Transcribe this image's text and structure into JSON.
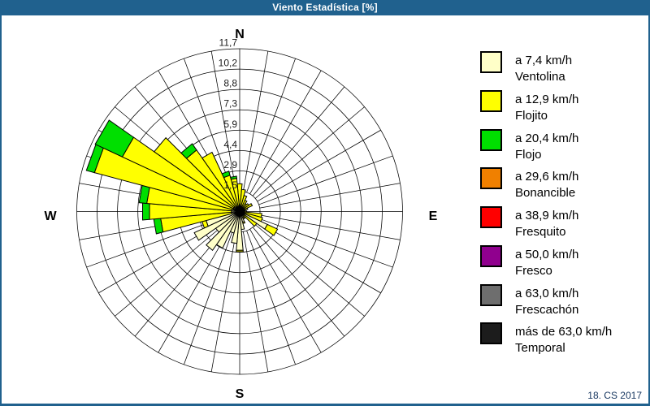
{
  "header": {
    "title": "Viento Estadística [%]"
  },
  "footer": {
    "text": "18. CS 2017"
  },
  "legend": {
    "entries": [
      {
        "color": "#FFFFC8",
        "speed": "a 7,4 km/h",
        "name": "Ventolina"
      },
      {
        "color": "#FFFF00",
        "speed": "a 12,9 km/h",
        "name": "Flojito"
      },
      {
        "color": "#00DF00",
        "speed": "a 20,4 km/h",
        "name": "Flojo"
      },
      {
        "color": "#F08000",
        "speed": "a 29,6 km/h",
        "name": "Bonancible"
      },
      {
        "color": "#FF0000",
        "speed": "a 38,9 km/h",
        "name": "Fresquito"
      },
      {
        "color": "#90008E",
        "speed": "a 50,0 km/h",
        "name": "Fresco"
      },
      {
        "color": "#6E6E6E",
        "speed": "a 63,0 km/h",
        "name": "Frescachón"
      },
      {
        "color": "#1C1C1C",
        "speed": "más de 63,0 km/h",
        "name": "Temporal"
      }
    ]
  },
  "chart_data": {
    "type": "windrose-stacked-bar",
    "units": "%",
    "sector_width_deg": 10,
    "max_value": 11.7,
    "ring_values": [
      1.5,
      2.9,
      4.4,
      5.9,
      7.3,
      8.8,
      10.2,
      11.7
    ],
    "ring_labels": [
      "1,5",
      "2,9",
      "4,4",
      "5,9",
      "7,3",
      "8,8",
      "10,2",
      "11,7"
    ],
    "compass": {
      "n": "N",
      "e": "E",
      "s": "S",
      "w": "W"
    },
    "series": [
      {
        "name": "Ventolina",
        "color": "#FFFFC8"
      },
      {
        "name": "Flojito",
        "color": "#FFFF00"
      },
      {
        "name": "Flojo",
        "color": "#00DF00"
      }
    ],
    "sectors": [
      {
        "deg": 0,
        "cum": [
          0.5,
          2.0,
          2.0
        ]
      },
      {
        "deg": 10,
        "cum": [
          0.4,
          1.6,
          1.6
        ]
      },
      {
        "deg": 20,
        "cum": [
          0.4,
          1.2,
          1.2
        ]
      },
      {
        "deg": 30,
        "cum": [
          0.3,
          0.9,
          0.9
        ]
      },
      {
        "deg": 40,
        "cum": [
          0.3,
          0.7,
          0.7
        ]
      },
      {
        "deg": 50,
        "cum": [
          0.3,
          0.8,
          0.8
        ]
      },
      {
        "deg": 60,
        "cum": [
          0.3,
          1.0,
          1.0
        ]
      },
      {
        "deg": 70,
        "cum": [
          0.2,
          0.6,
          0.6
        ]
      },
      {
        "deg": 80,
        "cum": [
          0.2,
          0.4,
          0.4
        ]
      },
      {
        "deg": 90,
        "cum": [
          0.2,
          0.5,
          0.5
        ]
      },
      {
        "deg": 100,
        "cum": [
          0.3,
          1.6,
          1.6
        ]
      },
      {
        "deg": 110,
        "cum": [
          0.3,
          1.7,
          1.7
        ]
      },
      {
        "deg": 120,
        "cum": [
          2.2,
          3.0,
          3.0
        ]
      },
      {
        "deg": 130,
        "cum": [
          0.4,
          1.5,
          1.5
        ]
      },
      {
        "deg": 140,
        "cum": [
          0.3,
          0.6,
          0.6
        ]
      },
      {
        "deg": 150,
        "cum": [
          0.5,
          0.6,
          0.6
        ]
      },
      {
        "deg": 160,
        "cum": [
          0.8,
          0.9,
          0.9
        ]
      },
      {
        "deg": 170,
        "cum": [
          1.3,
          1.3,
          1.3
        ]
      },
      {
        "deg": 180,
        "cum": [
          2.8,
          2.9,
          2.9
        ]
      },
      {
        "deg": 190,
        "cum": [
          2.3,
          2.3,
          2.3
        ]
      },
      {
        "deg": 200,
        "cum": [
          1.6,
          1.6,
          1.6
        ]
      },
      {
        "deg": 210,
        "cum": [
          2.9,
          2.9,
          2.9
        ]
      },
      {
        "deg": 220,
        "cum": [
          3.4,
          3.4,
          3.4
        ]
      },
      {
        "deg": 230,
        "cum": [
          2.1,
          2.1,
          2.1
        ]
      },
      {
        "deg": 240,
        "cum": [
          3.6,
          3.6,
          3.6
        ]
      },
      {
        "deg": 250,
        "cum": [
          2.5,
          2.8,
          2.8
        ]
      },
      {
        "deg": 260,
        "cum": [
          0.6,
          5.7,
          6.2
        ]
      },
      {
        "deg": 270,
        "cum": [
          0.6,
          6.5,
          7.0
        ]
      },
      {
        "deg": 280,
        "cum": [
          0.6,
          6.7,
          7.25
        ]
      },
      {
        "deg": 290,
        "cum": [
          0.5,
          10.8,
          11.4
        ]
      },
      {
        "deg": 300,
        "cum": [
          0.5,
          9.3,
          11.45
        ]
      },
      {
        "deg": 310,
        "cum": [
          0.5,
          7.5,
          7.5
        ]
      },
      {
        "deg": 320,
        "cum": [
          0.4,
          5.4,
          5.95
        ]
      },
      {
        "deg": 330,
        "cum": [
          0.4,
          4.7,
          4.7
        ]
      },
      {
        "deg": 340,
        "cum": [
          0.4,
          2.7,
          3.0
        ]
      },
      {
        "deg": 350,
        "cum": [
          0.4,
          2.4,
          2.55
        ]
      }
    ]
  }
}
